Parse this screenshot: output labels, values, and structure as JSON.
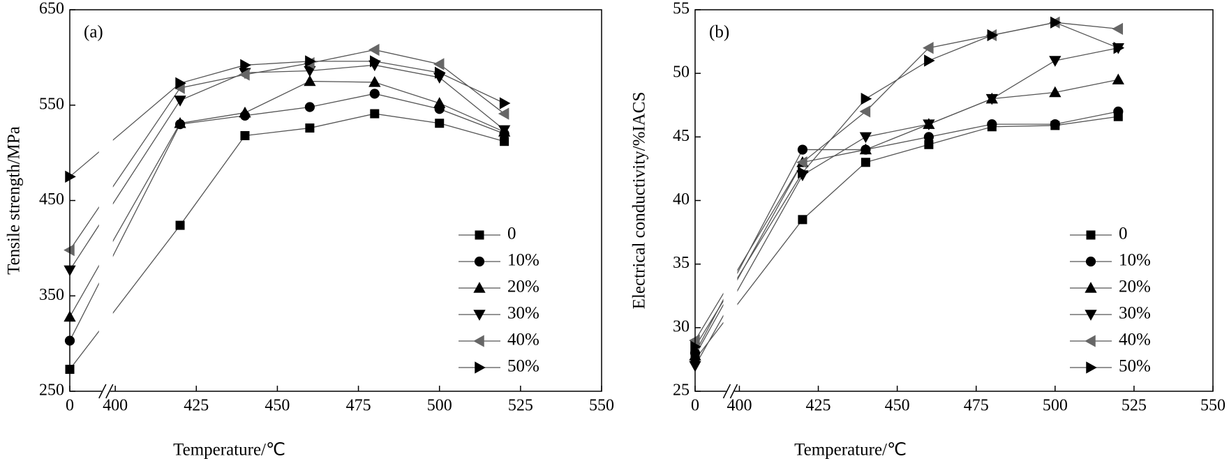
{
  "chart_data": [
    {
      "type": "line",
      "title": "(a)",
      "xlabel": "Temperature/℃",
      "ylabel": "Tensile strength/MPa",
      "x": [
        0,
        420,
        440,
        460,
        480,
        500,
        520
      ],
      "xlim": [
        0,
        550
      ],
      "xticks": [
        0,
        400,
        425,
        450,
        475,
        500,
        525,
        550
      ],
      "xbreak": [
        0,
        400
      ],
      "ylim": [
        250,
        650
      ],
      "yticks": [
        250,
        350,
        450,
        550,
        650
      ],
      "legend": "lower right",
      "series": [
        {
          "name": "0",
          "color": "#000000",
          "marker": "s",
          "values": [
            273,
            424,
            518,
            526,
            541,
            531,
            512
          ]
        },
        {
          "name": "10%",
          "color": "#000000",
          "marker": "o",
          "values": [
            303,
            530,
            539,
            548,
            562,
            546,
            520
          ]
        },
        {
          "name": "20%",
          "color": "#000000",
          "marker": "^",
          "values": [
            328,
            531,
            542,
            575,
            574,
            552,
            522
          ]
        },
        {
          "name": "30%",
          "color": "#000000",
          "marker": "v",
          "values": [
            377,
            555,
            584,
            586,
            592,
            579,
            524
          ]
        },
        {
          "name": "40%",
          "color": "#666666",
          "marker": "<",
          "values": [
            398,
            568,
            582,
            594,
            608,
            593,
            541
          ]
        },
        {
          "name": "50%",
          "color": "#000000",
          "marker": ">",
          "values": [
            475,
            573,
            592,
            596,
            596,
            584,
            552
          ]
        }
      ]
    },
    {
      "type": "line",
      "title": "(b)",
      "xlabel": "Temperature/℃",
      "ylabel": "Electrical conductivity/%IACS",
      "x": [
        0,
        420,
        440,
        460,
        480,
        500,
        520
      ],
      "xlim": [
        0,
        550
      ],
      "xticks": [
        0,
        400,
        425,
        450,
        475,
        500,
        525,
        550
      ],
      "xbreak": [
        0,
        400
      ],
      "ylim": [
        25,
        55
      ],
      "yticks": [
        25,
        30,
        35,
        40,
        45,
        50,
        55
      ],
      "legend": "lower right",
      "series": [
        {
          "name": "0",
          "color": "#000000",
          "marker": "s",
          "values": [
            27.5,
            38.5,
            43,
            44.4,
            45.8,
            45.9,
            46.6
          ]
        },
        {
          "name": "10%",
          "color": "#000000",
          "marker": "o",
          "values": [
            28,
            44,
            44,
            45,
            46,
            46,
            47
          ]
        },
        {
          "name": "20%",
          "color": "#000000",
          "marker": "^",
          "values": [
            27.8,
            43,
            44,
            46,
            48,
            48.5,
            49.5
          ]
        },
        {
          "name": "30%",
          "color": "#000000",
          "marker": "v",
          "values": [
            27,
            42,
            45,
            46,
            48,
            51,
            52
          ]
        },
        {
          "name": "40%",
          "color": "#666666",
          "marker": "<",
          "values": [
            29,
            43,
            47,
            52,
            53,
            54,
            53.5
          ]
        },
        {
          "name": "50%",
          "color": "#000000",
          "marker": ">",
          "values": [
            28.5,
            42.2,
            48,
            51,
            53,
            54,
            52
          ]
        }
      ]
    }
  ]
}
